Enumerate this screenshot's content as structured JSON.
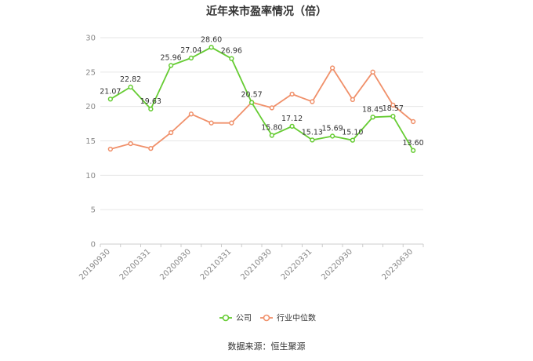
{
  "title": "近年来市盈率情况（倍）",
  "source": "数据来源：恒生聚源",
  "colors": {
    "company": "#66cc33",
    "industry": "#f0906a",
    "grid": "#e6e6e6",
    "axis": "#cccccc"
  },
  "chart_data": {
    "type": "line",
    "title": "近年来市盈率情况（倍）",
    "ylim": [
      0,
      30
    ],
    "yticks": [
      0,
      5,
      10,
      15,
      20,
      25,
      30
    ],
    "x_tick_labels": [
      "20190930",
      "20200331",
      "20200930",
      "20210331",
      "20210930",
      "20220331",
      "20220930",
      "20230630"
    ],
    "x": [
      "20190930",
      "20191231",
      "20200331",
      "20200630",
      "20200930",
      "20201231",
      "20210331",
      "20210630",
      "20210930",
      "20211231",
      "20220331",
      "20220630",
      "20220930",
      "20221231",
      "20230331",
      "20230630"
    ],
    "grid": true,
    "legend": "bottom-center",
    "series": [
      {
        "name": "公司",
        "color": "#66cc33",
        "values": [
          21.07,
          22.82,
          19.63,
          25.96,
          27.04,
          28.6,
          26.96,
          20.57,
          15.8,
          17.12,
          15.13,
          15.69,
          15.1,
          18.45,
          18.57,
          13.6
        ],
        "labels": [
          "21.07",
          "22.82",
          "19.63",
          "25.96",
          "27.04",
          "28.60",
          "26.96",
          "20.57",
          "15.80",
          "17.12",
          "15.13",
          "15.69",
          "15.10",
          "18.45",
          "18.57",
          "13.60"
        ]
      },
      {
        "name": "行业中位数",
        "color": "#f0906a",
        "values": [
          13.8,
          14.6,
          13.9,
          16.2,
          18.9,
          17.6,
          17.6,
          20.6,
          19.8,
          21.8,
          20.7,
          25.6,
          21.0,
          25.0,
          20.2,
          17.8
        ]
      }
    ]
  }
}
